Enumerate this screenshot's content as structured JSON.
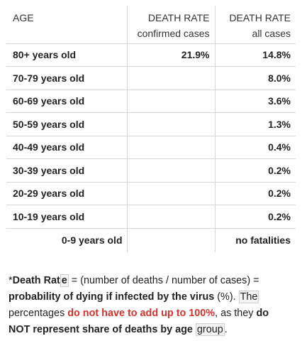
{
  "table": {
    "headers": {
      "age": "AGE",
      "confirmed_line1": "DEATH RATE",
      "confirmed_line2": "confirmed cases",
      "all_line1": "DEATH RATE",
      "all_line2": "all cases"
    },
    "rows": [
      {
        "age": "80+ years old",
        "confirmed": "21.9%",
        "all": "14.8%"
      },
      {
        "age": "70-79 years old",
        "confirmed": "",
        "all": "8.0%"
      },
      {
        "age": "60-69 years old",
        "confirmed": "",
        "all": "3.6%"
      },
      {
        "age": "50-59 years old",
        "confirmed": "",
        "all": "1.3%"
      },
      {
        "age": "40-49 years old",
        "confirmed": "",
        "all": "0.4%"
      },
      {
        "age": "30-39 years old",
        "confirmed": "",
        "all": "0.2%"
      },
      {
        "age": "20-29 years old",
        "confirmed": "",
        "all": "0.2%"
      },
      {
        "age": "10-19 years old",
        "confirmed": "",
        "all": "0.2%"
      },
      {
        "age": "0-9 years old",
        "confirmed": "",
        "all": "no fatalities"
      }
    ]
  },
  "footnote": {
    "asterisk": "*",
    "term_bold": "Death Rat",
    "term_box": "e",
    "definition": " = (number of deaths / number of cases) = ",
    "probability_bold": "probability of dying if infected by the virus",
    "unit": " (%). ",
    "the_box": "The",
    "percentages": " percentages ",
    "not_add_red": "do not have to add up to 100%",
    "as_they": ", as they ",
    "do_bold": "do",
    "not_represent_bold": "NOT represent share of deaths by age",
    "space": " ",
    "group_box": "group",
    "period": "."
  },
  "colors": {
    "text": "#222222",
    "grid": "#d6d6d6",
    "accent_red": "#d0342c"
  }
}
